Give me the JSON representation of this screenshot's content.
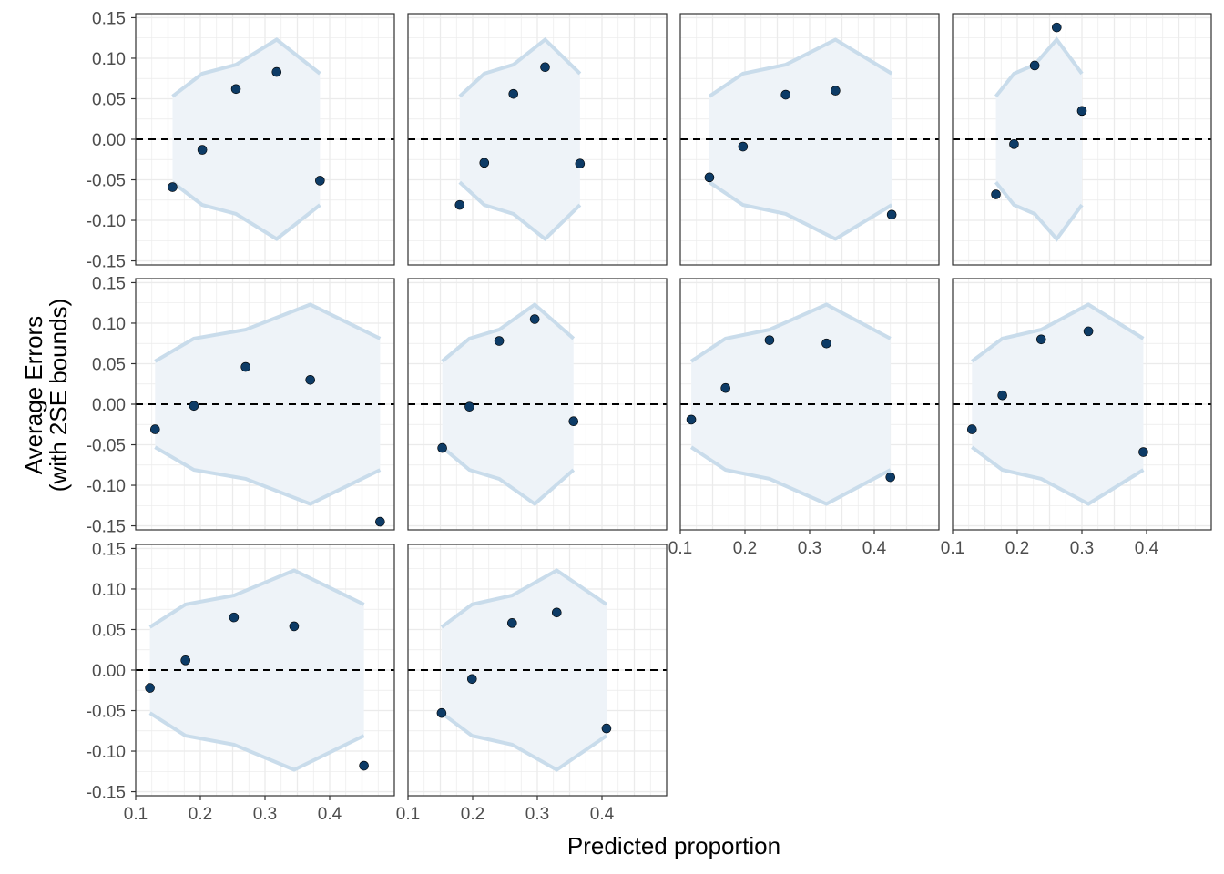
{
  "chart_data": {
    "type": "scatter",
    "xlabel": "Predicted proportion",
    "ylabel": [
      "Average Errors",
      "(with 2SE bounds)"
    ],
    "xlim": [
      0.1,
      0.5
    ],
    "ylim": [
      -0.155,
      0.155
    ],
    "x_ticks": [
      0.1,
      0.2,
      0.3,
      0.4
    ],
    "x_tick_labels": [
      "0.1",
      "0.2",
      "0.3",
      "0.4"
    ],
    "y_ticks": [
      0.15,
      0.1,
      0.05,
      0.0,
      -0.05,
      -0.1,
      -0.15
    ],
    "y_tick_labels": [
      "0.15",
      "0.10",
      "0.05",
      "0.00",
      "-0.05",
      "-0.10",
      "-0.15"
    ],
    "reference_line_y": 0,
    "grid": true,
    "colors": {
      "point": "#0d3b66",
      "band_fill": "#eef3f8",
      "band_line": "#c9dceb",
      "reference_line": "#000000",
      "grid": "#ebebeb",
      "panel_border": "#333333"
    },
    "panels": [
      {
        "points": [
          [
            0.157,
            -0.059
          ],
          [
            0.203,
            -0.013
          ],
          [
            0.255,
            0.062
          ],
          [
            0.318,
            0.083
          ],
          [
            0.385,
            -0.051
          ]
        ],
        "bounds": [
          [
            0.157,
            0.053
          ],
          [
            0.203,
            0.081
          ],
          [
            0.255,
            0.092
          ],
          [
            0.318,
            0.123
          ],
          [
            0.385,
            0.081
          ]
        ]
      },
      {
        "points": [
          [
            0.18,
            -0.081
          ],
          [
            0.218,
            -0.029
          ],
          [
            0.263,
            0.056
          ],
          [
            0.312,
            0.089
          ],
          [
            0.366,
            -0.03
          ]
        ],
        "bounds": [
          [
            0.18,
            0.053
          ],
          [
            0.218,
            0.081
          ],
          [
            0.263,
            0.092
          ],
          [
            0.312,
            0.123
          ],
          [
            0.366,
            0.081
          ]
        ]
      },
      {
        "points": [
          [
            0.145,
            -0.047
          ],
          [
            0.197,
            -0.009
          ],
          [
            0.263,
            0.055
          ],
          [
            0.34,
            0.06
          ],
          [
            0.427,
            -0.093
          ]
        ],
        "bounds": [
          [
            0.145,
            0.053
          ],
          [
            0.197,
            0.081
          ],
          [
            0.263,
            0.092
          ],
          [
            0.34,
            0.123
          ],
          [
            0.427,
            0.081
          ]
        ]
      },
      {
        "points": [
          [
            0.167,
            -0.068
          ],
          [
            0.195,
            -0.006
          ],
          [
            0.227,
            0.091
          ],
          [
            0.261,
            0.138
          ],
          [
            0.3,
            0.035
          ]
        ],
        "bounds": [
          [
            0.167,
            0.053
          ],
          [
            0.195,
            0.081
          ],
          [
            0.227,
            0.092
          ],
          [
            0.261,
            0.123
          ],
          [
            0.3,
            0.081
          ]
        ]
      },
      {
        "points": [
          [
            0.13,
            -0.031
          ],
          [
            0.19,
            -0.002
          ],
          [
            0.27,
            0.046
          ],
          [
            0.37,
            0.03
          ],
          [
            0.478,
            -0.145
          ]
        ],
        "bounds": [
          [
            0.13,
            0.053
          ],
          [
            0.19,
            0.081
          ],
          [
            0.27,
            0.092
          ],
          [
            0.37,
            0.123
          ],
          [
            0.478,
            0.081
          ]
        ]
      },
      {
        "points": [
          [
            0.153,
            -0.054
          ],
          [
            0.195,
            -0.003
          ],
          [
            0.241,
            0.078
          ],
          [
            0.296,
            0.105
          ],
          [
            0.356,
            -0.021
          ]
        ],
        "bounds": [
          [
            0.153,
            0.053
          ],
          [
            0.195,
            0.081
          ],
          [
            0.241,
            0.092
          ],
          [
            0.296,
            0.123
          ],
          [
            0.356,
            0.081
          ]
        ]
      },
      {
        "points": [
          [
            0.117,
            -0.019
          ],
          [
            0.17,
            0.02
          ],
          [
            0.238,
            0.079
          ],
          [
            0.326,
            0.075
          ],
          [
            0.425,
            -0.09
          ]
        ],
        "bounds": [
          [
            0.117,
            0.053
          ],
          [
            0.17,
            0.081
          ],
          [
            0.238,
            0.092
          ],
          [
            0.326,
            0.123
          ],
          [
            0.425,
            0.081
          ]
        ]
      },
      {
        "points": [
          [
            0.13,
            -0.031
          ],
          [
            0.177,
            0.011
          ],
          [
            0.237,
            0.08
          ],
          [
            0.31,
            0.09
          ],
          [
            0.395,
            -0.059
          ]
        ],
        "bounds": [
          [
            0.13,
            0.053
          ],
          [
            0.177,
            0.081
          ],
          [
            0.237,
            0.092
          ],
          [
            0.31,
            0.123
          ],
          [
            0.395,
            0.081
          ]
        ]
      },
      {
        "points": [
          [
            0.122,
            -0.022
          ],
          [
            0.177,
            0.012
          ],
          [
            0.252,
            0.065
          ],
          [
            0.345,
            0.054
          ],
          [
            0.453,
            -0.118
          ]
        ],
        "bounds": [
          [
            0.122,
            0.053
          ],
          [
            0.177,
            0.081
          ],
          [
            0.252,
            0.092
          ],
          [
            0.345,
            0.123
          ],
          [
            0.453,
            0.081
          ]
        ]
      },
      {
        "points": [
          [
            0.152,
            -0.053
          ],
          [
            0.199,
            -0.011
          ],
          [
            0.261,
            0.058
          ],
          [
            0.33,
            0.071
          ],
          [
            0.407,
            -0.072
          ]
        ],
        "bounds": [
          [
            0.152,
            0.053
          ],
          [
            0.199,
            0.081
          ],
          [
            0.261,
            0.092
          ],
          [
            0.33,
            0.123
          ],
          [
            0.407,
            0.081
          ]
        ]
      }
    ]
  }
}
